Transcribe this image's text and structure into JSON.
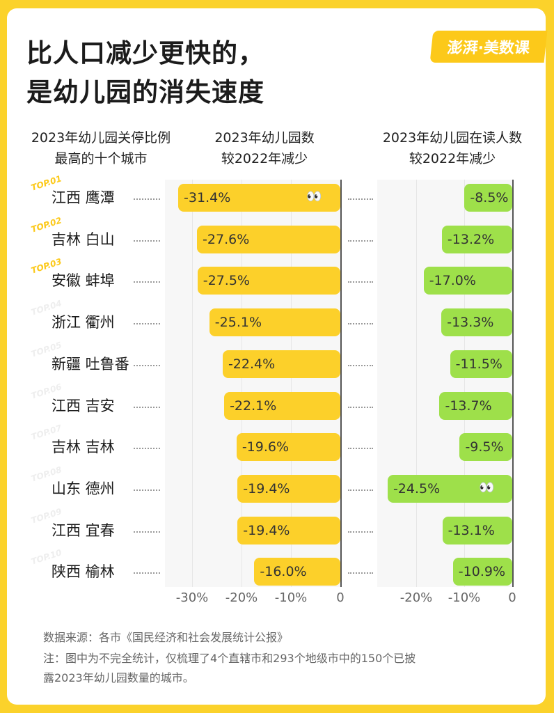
{
  "title_line1": "比人口减少更快的，",
  "title_line2": "是幼儿园的消失速度",
  "logo": "澎湃·美数课",
  "headers": {
    "cities_l1": "2023年幼儿园关停比例",
    "cities_l2": "最高的十个城市",
    "left_l1": "2023年幼儿园数",
    "left_l2": "较2022年减少",
    "right_l1": "2023年幼儿园在读人数",
    "right_l2": "较2022年减少"
  },
  "chart_data": [
    {
      "type": "bar",
      "orientation": "horizontal",
      "title": "2023年幼儿园数较2022年减少",
      "categories": [
        "江西 鹰潭",
        "吉林 白山",
        "安徽 蚌埠",
        "浙江 衢州",
        "新疆 吐鲁番",
        "江西 吉安",
        "吉林 吉林",
        "山东 德州",
        "江西 宜春",
        "陕西 榆林"
      ],
      "values": [
        -31.4,
        -27.6,
        -27.5,
        -25.1,
        -22.4,
        -22.1,
        -19.6,
        -19.4,
        -19.4,
        -16.0
      ],
      "labels": [
        "-31.4%",
        "-27.6%",
        "-27.5%",
        "-25.1%",
        "-22.4%",
        "-22.1%",
        "-19.6%",
        "-19.4%",
        "-19.4%",
        "-16.0%"
      ],
      "xlim": [
        -35,
        0
      ],
      "ticks": [
        "-30%",
        "-20%",
        "-10%",
        "0"
      ],
      "tick_values": [
        -30,
        -20,
        -10,
        0
      ],
      "color": "#fcd02a"
    },
    {
      "type": "bar",
      "orientation": "horizontal",
      "title": "2023年幼儿园在读人数较2022年减少",
      "categories": [
        "江西 鹰潭",
        "吉林 白山",
        "安徽 蚌埠",
        "浙江 衢州",
        "新疆 吐鲁番",
        "江西 吉安",
        "吉林 吉林",
        "山东 德州",
        "江西 宜春",
        "陕西 榆林"
      ],
      "values": [
        -8.5,
        -13.2,
        -17.0,
        -13.3,
        -11.5,
        -13.7,
        -9.5,
        -24.5,
        -13.1,
        -10.9
      ],
      "labels": [
        "-8.5%",
        "-13.2%",
        "-17.0%",
        "-13.3%",
        "-11.5%",
        "-13.7%",
        "-9.5%",
        "-24.5%",
        "-13.1%",
        "-10.9%"
      ],
      "xlim": [
        -28,
        0
      ],
      "ticks": [
        "-20%",
        "-10%",
        "0"
      ],
      "tick_values": [
        -20,
        -10,
        0
      ],
      "color": "#9ee04a"
    }
  ],
  "ranks": [
    "TOP.01",
    "TOP.02",
    "TOP.03",
    "TOP.04",
    "TOP.05",
    "TOP.06",
    "TOP.07",
    "TOP.08",
    "TOP.09",
    "TOP.10"
  ],
  "source": "数据来源：各市《国民经济和社会发展统计公报》",
  "note_l1": "注：图中为不完全统计，仅梳理了4个直辖市和293个地级市中的150个已披",
  "note_l2": "露2023年幼儿园数量的城市。"
}
